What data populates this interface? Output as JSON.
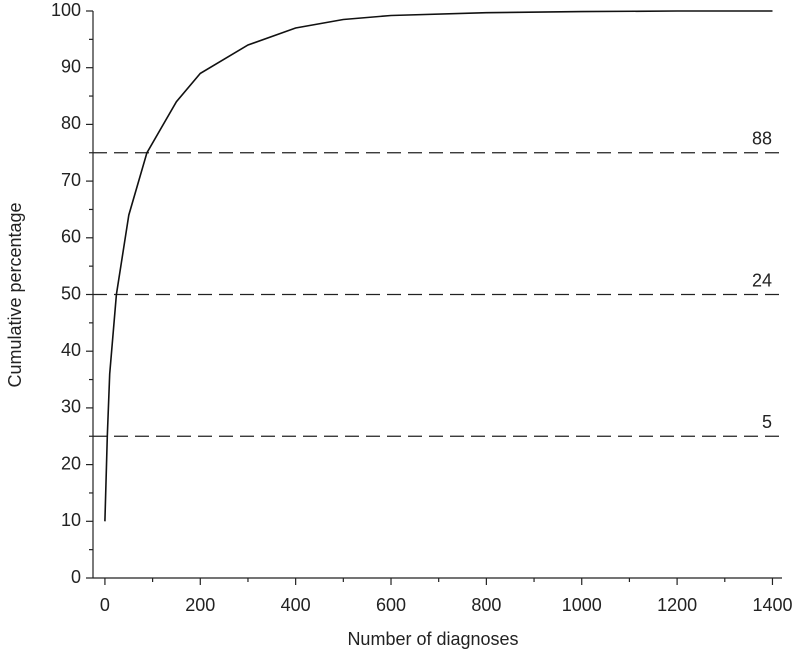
{
  "chart_data": {
    "type": "line",
    "x_label": "Number of diagnoses",
    "y_label": "Cumulative percentage",
    "x": [
      0,
      0,
      5,
      10,
      24,
      50,
      88,
      150,
      200,
      300,
      400,
      500,
      600,
      800,
      1000,
      1200,
      1400
    ],
    "values": [
      10,
      10,
      25,
      36,
      50,
      64,
      75,
      84,
      89,
      94,
      97,
      98.5,
      99.2,
      99.7,
      99.9,
      100,
      100
    ],
    "color": "#111111",
    "xlim": [
      -25,
      1420
    ],
    "ylim": [
      0,
      100
    ],
    "xticks": [
      0,
      200,
      400,
      600,
      800,
      1000,
      1200,
      1400
    ],
    "xminorticks": [
      100,
      300,
      500,
      700,
      900,
      1100,
      1300
    ],
    "yticks": [
      0,
      10,
      20,
      30,
      40,
      50,
      60,
      70,
      80,
      90,
      100
    ],
    "yminorticks": [
      5,
      15,
      25,
      35,
      45,
      55,
      65,
      75,
      85,
      95
    ],
    "hlines": [
      {
        "value": 25,
        "label": "5"
      },
      {
        "value": 50,
        "label": "24"
      },
      {
        "value": 75,
        "label": "88"
      }
    ]
  }
}
